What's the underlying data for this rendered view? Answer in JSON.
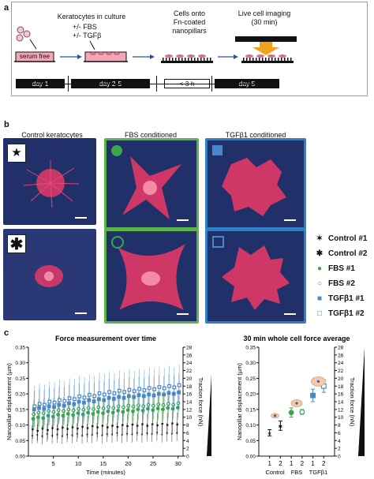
{
  "panel_a": {
    "letter": "a",
    "step1_label": "Keratocytes in culture",
    "step2_label_1": "+/- FBS",
    "step2_label_2": "+/- TGFβ",
    "step3_label_1": "Cells onto",
    "step3_label_2": "Fn-coated",
    "step3_label_3": "nanopillars",
    "step4_label_1": "Live cell imaging",
    "step4_label_2": "(30 min)",
    "dish_label": "serum free",
    "timeline": [
      "day 1",
      "day 2-5",
      "< 3 h",
      "day 5"
    ],
    "accent_color": "#f3a21f"
  },
  "panel_b": {
    "letter": "b",
    "col_titles": [
      "Control keratocytes",
      "FBS conditioned",
      "TGFβ1 conditioned"
    ],
    "border_colors": {
      "fbs": "#5ab44a",
      "tgf": "#2f7fc2"
    },
    "legend": [
      {
        "symbol": "star-icon",
        "label": "Control #1",
        "color": "#111111"
      },
      {
        "symbol": "asterisk-icon",
        "label": "Control #2",
        "color": "#111111"
      },
      {
        "symbol": "filled-circle-icon",
        "label": "FBS #1",
        "color": "#3aa64a"
      },
      {
        "symbol": "open-circle-icon",
        "label": "FBS #2",
        "color": "#3aa64a"
      },
      {
        "symbol": "filled-square-icon",
        "label": "TGFβ1 #1",
        "color": "#4a86c8"
      },
      {
        "symbol": "open-square-icon",
        "label": "TGFβ1 #2",
        "color": "#4a86c8"
      }
    ]
  },
  "panel_c": {
    "letter": "c"
  },
  "chart_data": [
    {
      "type": "scatter",
      "title": "Force measurement over time",
      "xlabel": "Time (minutes)",
      "ylabel": "Nanopillar displacement (µm)",
      "y2label": "Traction force (nN)",
      "xlim": [
        0,
        31
      ],
      "ylim": [
        0,
        0.35
      ],
      "y2lim": [
        0,
        28
      ],
      "xticks": [
        5,
        10,
        15,
        20,
        25,
        30
      ],
      "yticks": [
        0.0,
        0.05,
        0.1,
        0.15,
        0.2,
        0.25,
        0.3,
        0.35
      ],
      "y2ticks": [
        0,
        2,
        4,
        6,
        8,
        10,
        12,
        14,
        16,
        18,
        20,
        22,
        24,
        26,
        28
      ],
      "grid": false,
      "x": [
        1,
        2,
        3,
        4,
        5,
        6,
        7,
        8,
        9,
        10,
        11,
        12,
        13,
        14,
        15,
        16,
        17,
        18,
        19,
        20,
        21,
        22,
        23,
        24,
        25,
        26,
        27,
        28,
        29,
        30
      ],
      "series": [
        {
          "name": "Control #1",
          "marker": "star",
          "color": "#111111",
          "values": [
            0.07,
            0.072,
            0.068,
            0.075,
            0.07,
            0.073,
            0.069,
            0.074,
            0.071,
            0.076,
            0.07,
            0.074,
            0.072,
            0.077,
            0.071,
            0.075,
            0.073,
            0.078,
            0.072,
            0.076,
            0.074,
            0.079,
            0.073,
            0.077,
            0.075,
            0.08,
            0.074,
            0.078,
            0.076,
            0.079
          ],
          "err": 0.03
        },
        {
          "name": "Control #2",
          "marker": "asterisk",
          "color": "#111111",
          "values": [
            0.09,
            0.085,
            0.092,
            0.088,
            0.094,
            0.09,
            0.095,
            0.091,
            0.097,
            0.093,
            0.098,
            0.094,
            0.1,
            0.096,
            0.101,
            0.097,
            0.102,
            0.098,
            0.104,
            0.1,
            0.105,
            0.101,
            0.106,
            0.102,
            0.107,
            0.103,
            0.108,
            0.104,
            0.109,
            0.105
          ],
          "err": 0.035
        },
        {
          "name": "FBS #1",
          "marker": "filled-circle",
          "color": "#3aa64a",
          "values": [
            0.12,
            0.125,
            0.122,
            0.13,
            0.127,
            0.133,
            0.13,
            0.136,
            0.132,
            0.138,
            0.134,
            0.14,
            0.136,
            0.142,
            0.138,
            0.144,
            0.14,
            0.146,
            0.142,
            0.148,
            0.144,
            0.15,
            0.146,
            0.152,
            0.148,
            0.153,
            0.15,
            0.155,
            0.152,
            0.156
          ],
          "err": 0.04
        },
        {
          "name": "FBS #2",
          "marker": "open-circle",
          "color": "#3aa64a",
          "values": [
            0.135,
            0.14,
            0.138,
            0.145,
            0.142,
            0.148,
            0.145,
            0.15,
            0.147,
            0.152,
            0.149,
            0.155,
            0.151,
            0.157,
            0.153,
            0.158,
            0.155,
            0.16,
            0.157,
            0.162,
            0.159,
            0.163,
            0.16,
            0.165,
            0.162,
            0.166,
            0.164,
            0.168,
            0.165,
            0.17
          ],
          "err": 0.045
        },
        {
          "name": "TGFβ1 #1",
          "marker": "filled-square",
          "color": "#4a86c8",
          "values": [
            0.15,
            0.155,
            0.152,
            0.16,
            0.158,
            0.165,
            0.162,
            0.17,
            0.167,
            0.175,
            0.172,
            0.18,
            0.176,
            0.183,
            0.18,
            0.187,
            0.184,
            0.19,
            0.187,
            0.193,
            0.19,
            0.196,
            0.193,
            0.198,
            0.195,
            0.2,
            0.198,
            0.203,
            0.2,
            0.205
          ],
          "err": 0.06
        },
        {
          "name": "TGFβ1 #2",
          "marker": "open-square",
          "color": "#4a86c8",
          "values": [
            0.16,
            0.168,
            0.165,
            0.175,
            0.172,
            0.18,
            0.177,
            0.186,
            0.183,
            0.192,
            0.188,
            0.197,
            0.193,
            0.202,
            0.198,
            0.206,
            0.202,
            0.21,
            0.206,
            0.213,
            0.209,
            0.216,
            0.212,
            0.219,
            0.215,
            0.222,
            0.218,
            0.225,
            0.221,
            0.228
          ],
          "err": 0.065
        }
      ]
    },
    {
      "type": "scatter",
      "title": "30 min whole cell force average",
      "ylabel": "Nanopillar displacement (µm)",
      "y2label": "Traction force (nN)",
      "categories": [
        "1",
        "2",
        "1",
        "2",
        "1",
        "2"
      ],
      "groups": [
        "Control",
        "FBS",
        "TGFβ1"
      ],
      "ylim": [
        0,
        0.35
      ],
      "y2lim": [
        0,
        28
      ],
      "yticks": [
        0.0,
        0.05,
        0.1,
        0.15,
        0.2,
        0.25,
        0.3,
        0.35
      ],
      "y2ticks": [
        0,
        2,
        4,
        6,
        8,
        10,
        12,
        14,
        16,
        18,
        20,
        22,
        24,
        26,
        28
      ],
      "series": [
        {
          "name": "Control #1",
          "marker": "star",
          "color": "#111111",
          "values": [
            0.075
          ],
          "err": 0.01
        },
        {
          "name": "Control #2",
          "marker": "asterisk",
          "color": "#111111",
          "values": [
            0.098
          ],
          "err": 0.015
        },
        {
          "name": "FBS #1",
          "marker": "filled-circle",
          "color": "#3aa64a",
          "values": [
            0.14
          ],
          "err": 0.015
        },
        {
          "name": "FBS #2",
          "marker": "open-circle",
          "color": "#3aa64a",
          "values": [
            0.142
          ],
          "err": 0.008
        },
        {
          "name": "TGFβ1 #1",
          "marker": "filled-square",
          "color": "#4a86c8",
          "values": [
            0.195
          ],
          "err": 0.02
        },
        {
          "name": "TGFβ1 #2",
          "marker": "open-square",
          "color": "#4a86c8",
          "values": [
            0.225
          ],
          "err": 0.02
        }
      ]
    }
  ]
}
